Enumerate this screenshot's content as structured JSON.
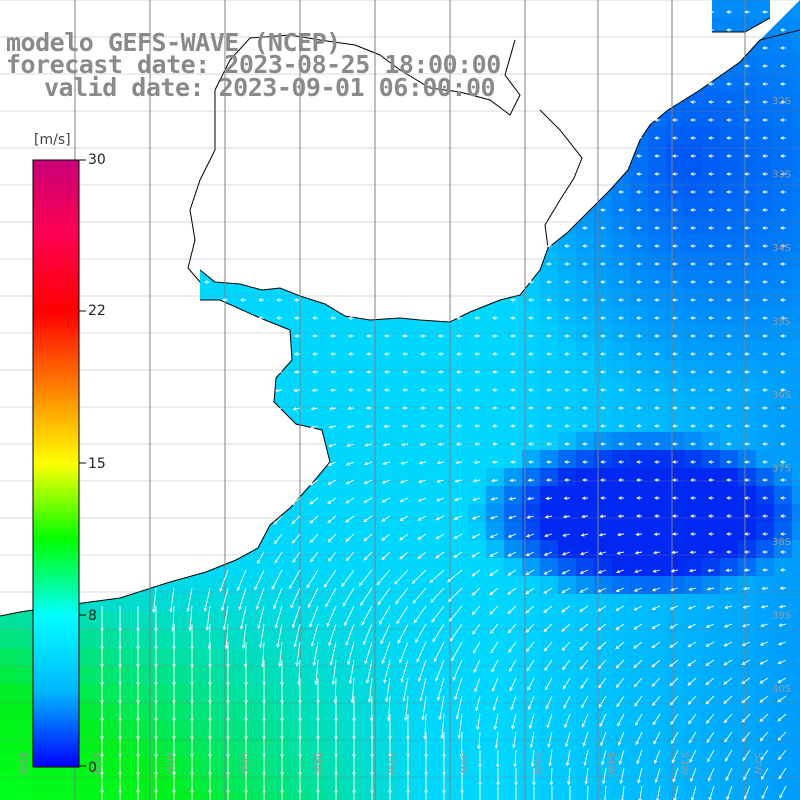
{
  "title": {
    "line1": "modelo GEFS-WAVE (NCEP)",
    "line2": "forecast date: 2023-08-25 18:00:00",
    "line3": "valid date: 2023-09-01 06:00:00"
  },
  "colorbar": {
    "unit": "[m/s]",
    "ticks": [
      "30",
      "22",
      "15",
      "8",
      "0"
    ],
    "tick_values": [
      30,
      22,
      15,
      8,
      0
    ],
    "range": [
      0,
      30
    ],
    "colors": [
      "#0000ff",
      "#00b8ff",
      "#00ffff",
      "#00ff00",
      "#ffff00",
      "#ff8000",
      "#ff0000",
      "#ff0050",
      "#c80078"
    ]
  },
  "map": {
    "land_color": "#ffffff",
    "coastline_color": "#000000",
    "grid_color": "#808080",
    "lon_labels": [
      "62W",
      "61W",
      "60W",
      "59W",
      "58W",
      "57W",
      "56W",
      "55W",
      "54W",
      "53W",
      "52W",
      "51W"
    ],
    "lat_labels": [
      "32S",
      "33S",
      "34S",
      "35S",
      "36S",
      "37S",
      "38S",
      "39S",
      "40S"
    ],
    "field_name": "wind speed"
  }
}
